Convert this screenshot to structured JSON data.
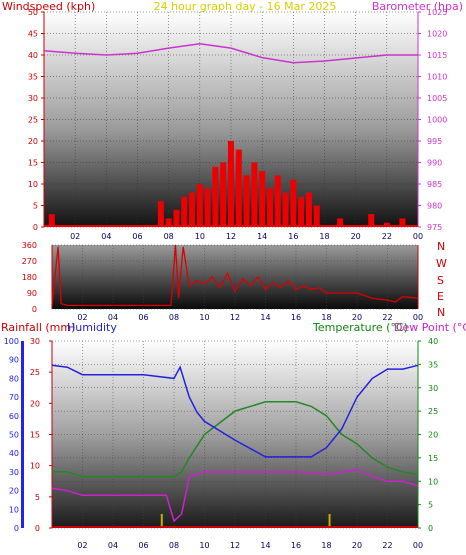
{
  "header": {
    "left_label": "Windspeed (kph)",
    "title": "24 hour graph day - 16 Mar 2025",
    "right_label": "Barometer (hpa)"
  },
  "lower_header": {
    "rain_label": "Rainfall (mm)",
    "humidity_label": "Humidity",
    "temp_label": "Temperature (°C)",
    "dew_label": "Dew Point (°C)"
  },
  "direction_labels": [
    "N",
    "W",
    "S",
    "E",
    "N"
  ],
  "colors": {
    "wind": "#ee0000",
    "gust_low": "#2020dd",
    "barometer": "#cc33cc",
    "direction": "#dd0000",
    "humidity": "#2222dd",
    "temperature": "#228822",
    "dewpoint": "#cc22cc",
    "rain": "#cc0000",
    "rain_marker": "#ccaa00",
    "left_axis": "#cc0000",
    "humidity_axis": "#2222ee",
    "temp_axis": "#118811"
  },
  "chart_data": [
    {
      "type": "line",
      "name": "windspeed-barometer",
      "x_ticks": [
        "02",
        "04",
        "06",
        "08",
        "10",
        "12",
        "14",
        "16",
        "18",
        "20",
        "22",
        "00"
      ],
      "y_left": {
        "label": "Windspeed (kph)",
        "ticks": [
          0,
          5,
          10,
          15,
          20,
          25,
          30,
          35,
          40,
          45,
          50
        ],
        "range": [
          0,
          50
        ]
      },
      "y_right": {
        "label": "Barometer (hpa)",
        "ticks": [
          975,
          980,
          985,
          990,
          995,
          1000,
          1005,
          1010,
          1015,
          1020,
          1025
        ],
        "range": [
          975,
          1025
        ]
      },
      "barometer_series": {
        "hours": [
          0,
          2,
          4,
          6,
          8,
          10,
          12,
          14,
          16,
          18,
          20,
          22,
          24
        ],
        "values": [
          1016.0,
          1015.4,
          1015.0,
          1015.4,
          1016.6,
          1017.6,
          1016.6,
          1014.4,
          1013.2,
          1013.6,
          1014.3,
          1015.0,
          1015.0
        ]
      },
      "wind_series": {
        "hours": [
          0.5,
          1,
          2,
          3,
          4,
          5,
          6,
          7,
          7.5,
          8,
          8.5,
          9,
          9.5,
          10,
          10.5,
          11,
          11.5,
          12,
          12.5,
          13,
          13.5,
          14,
          14.5,
          15,
          15.5,
          16,
          16.5,
          17,
          17.5,
          18,
          19,
          20,
          21,
          22,
          23,
          24
        ],
        "values": [
          3,
          0,
          0,
          0,
          0,
          0,
          0,
          0,
          6,
          2,
          4,
          7,
          8,
          10,
          9,
          14,
          15,
          20,
          18,
          12,
          15,
          13,
          9,
          12,
          8,
          11,
          7,
          8,
          5,
          0,
          2,
          0,
          3,
          1,
          2,
          0
        ]
      }
    },
    {
      "type": "line",
      "name": "wind-direction",
      "x_ticks": [
        "02",
        "04",
        "06",
        "08",
        "10",
        "12",
        "14",
        "16",
        "18",
        "20",
        "22",
        "00"
      ],
      "y_ticks": [
        0,
        90,
        180,
        270,
        360
      ],
      "y_range": [
        0,
        360
      ],
      "hours": [
        0,
        0.4,
        0.6,
        1,
        2,
        3,
        4,
        5,
        6,
        7,
        7.8,
        8.1,
        8.3,
        8.6,
        9,
        9.5,
        10,
        10.5,
        11,
        11.5,
        12,
        12.5,
        13,
        13.5,
        14,
        14.5,
        15,
        15.5,
        16,
        16.5,
        17,
        17.5,
        18,
        19,
        20,
        21,
        22,
        22.5,
        23,
        24
      ],
      "values": [
        20,
        350,
        30,
        20,
        20,
        20,
        20,
        20,
        20,
        20,
        20,
        360,
        60,
        350,
        130,
        160,
        140,
        180,
        120,
        200,
        100,
        170,
        130,
        180,
        110,
        150,
        120,
        160,
        110,
        130,
        110,
        120,
        90,
        90,
        90,
        60,
        50,
        40,
        70,
        60
      ]
    },
    {
      "type": "line",
      "name": "rain-humidity-temperature",
      "x_ticks": [
        "02",
        "04",
        "06",
        "08",
        "10",
        "12",
        "14",
        "16",
        "18",
        "20",
        "22",
        "00"
      ],
      "y_humidity": {
        "label": "Humidity",
        "ticks": [
          0,
          10,
          20,
          30,
          40,
          50,
          60,
          70,
          80,
          90,
          100
        ],
        "range": [
          0,
          100
        ]
      },
      "y_rain": {
        "label": "Rainfall (mm)",
        "ticks": [
          0,
          5,
          10,
          15,
          20,
          25,
          30
        ],
        "range": [
          0,
          30
        ]
      },
      "y_temp": {
        "label": "Temperature (°C)",
        "ticks": [
          0,
          5,
          10,
          15,
          20,
          25,
          30,
          35,
          40
        ],
        "range": [
          0,
          40
        ]
      },
      "humidity_series": {
        "hours": [
          0,
          1,
          2,
          4,
          6,
          8,
          8.4,
          9,
          9.5,
          10,
          12,
          14,
          16,
          17,
          18,
          19,
          20,
          21,
          22,
          23,
          24
        ],
        "values": [
          87,
          86,
          82,
          82,
          82,
          80,
          86,
          70,
          62,
          57,
          47,
          38,
          38,
          38,
          43,
          53,
          70,
          80,
          85,
          85,
          87
        ]
      },
      "temperature_series": {
        "hours": [
          0,
          1,
          2,
          4,
          6,
          8,
          8.5,
          9,
          10,
          12,
          14,
          16,
          17,
          18,
          19,
          20,
          21,
          22,
          23,
          24
        ],
        "values": [
          12,
          12,
          11,
          11,
          11,
          11,
          12,
          15,
          20,
          25,
          27,
          27,
          26,
          24,
          20,
          18,
          15,
          13,
          12,
          11.5
        ]
      },
      "dewpoint_series": {
        "hours": [
          0,
          1,
          2,
          4,
          6,
          7.5,
          8,
          8.5,
          9,
          10,
          12,
          14,
          16,
          18,
          19,
          20,
          21,
          22,
          23,
          24
        ],
        "values": [
          8.5,
          8,
          7,
          7,
          7,
          7,
          1.5,
          3,
          11,
          12,
          12,
          12,
          12,
          11.5,
          12,
          12.5,
          11,
          10,
          10,
          9
        ]
      },
      "rain_events": [
        {
          "hour": 7.2,
          "value": 2
        },
        {
          "hour": 18.2,
          "value": 2
        }
      ]
    }
  ]
}
